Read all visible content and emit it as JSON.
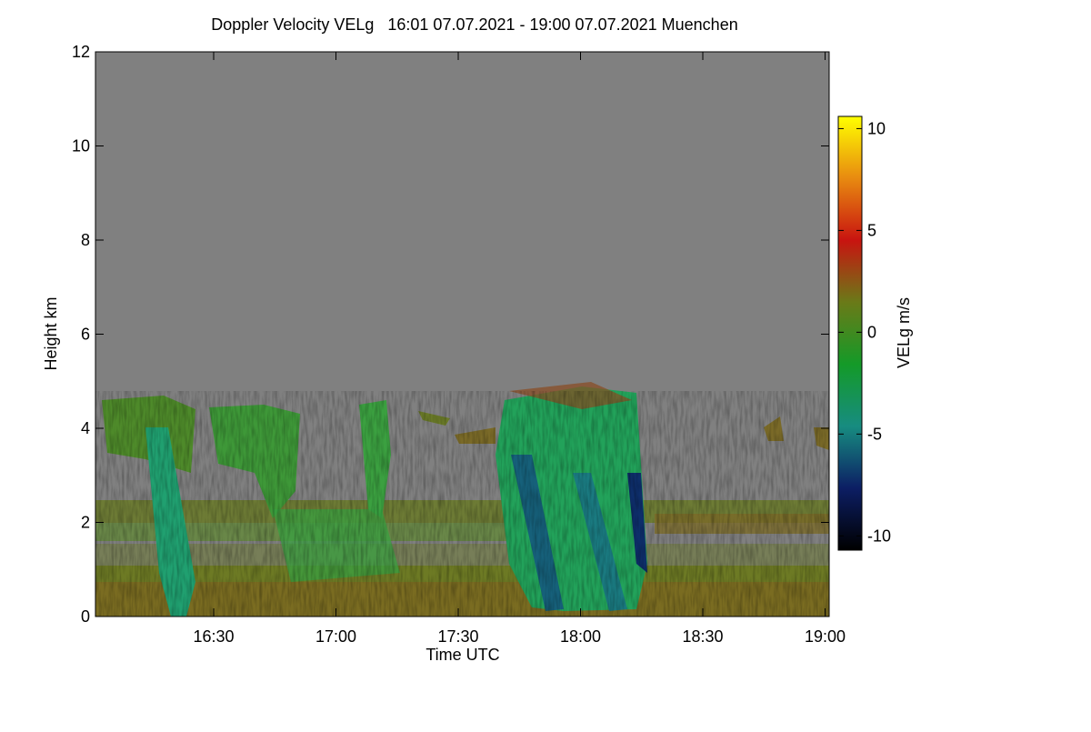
{
  "chart_data": {
    "type": "heatmap",
    "title": "Doppler Velocity VELg   16:01 07.07.2021 - 19:00 07.07.2021 Muenchen",
    "x_label": "Time UTC",
    "y_label": "Height km",
    "xlim": [
      "16:01",
      "19:01"
    ],
    "xticks": [
      "16:30",
      "17:00",
      "17:30",
      "18:00",
      "18:30",
      "19:00"
    ],
    "ylim": [
      0,
      12
    ],
    "yticks": [
      0,
      2,
      4,
      6,
      8,
      10,
      12
    ],
    "colorbar": {
      "label": "VELg m/s",
      "clim": [
        -10.7,
        10.6
      ],
      "ticks": [
        -10,
        -5,
        0,
        5,
        10
      ],
      "colormap": [
        "#000000",
        "#0c1e64",
        "#178c80",
        "#149a28",
        "#6a7a18",
        "#c81410",
        "#e88a10",
        "#ffff00"
      ]
    },
    "background": "#808080"
  }
}
